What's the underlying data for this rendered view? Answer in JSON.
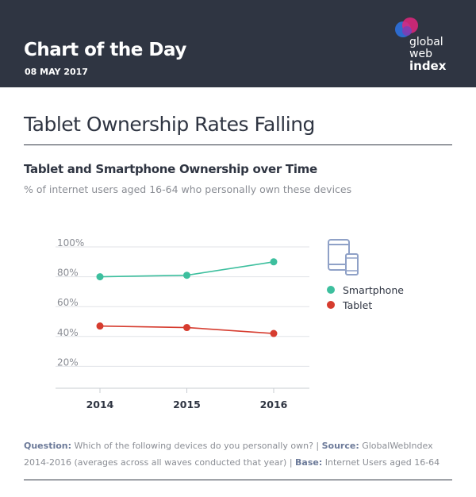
{
  "header": {
    "title": "Chart of the Day",
    "date": "08 MAY 2017",
    "logo_lines": [
      "global",
      "web",
      "index"
    ]
  },
  "page_title": "Tablet Ownership Rates Falling",
  "chart_data": {
    "type": "line",
    "title": "Tablet and Smartphone Ownership over Time",
    "subtitle": "% of internet users aged 16-64 who personally own these devices",
    "x": [
      "2014",
      "2015",
      "2016"
    ],
    "ylim": [
      0,
      100
    ],
    "y_ticks": [
      "100%",
      "80%",
      "60%",
      "40%",
      "20%"
    ],
    "y_tick_values": [
      100,
      80,
      60,
      40,
      20
    ],
    "grid": true,
    "legend_position": "right",
    "series": [
      {
        "name": "Smartphone",
        "values": [
          80,
          81,
          90
        ],
        "color": "#3dbf9e"
      },
      {
        "name": "Tablet",
        "values": [
          47,
          46,
          42
        ],
        "color": "#d63c2f"
      }
    ]
  },
  "legend_icon": "devices-icon",
  "footnote": {
    "question_label": "Question:",
    "question_text": " Which of the following devices do you personally own? | ",
    "source_label": "Source:",
    "source_text": " GlobalWebIndex 2014-2016 (averages across all waves conducted that year) | ",
    "base_label": "Base:",
    "base_text": " Internet Users aged 16-64"
  },
  "colors": {
    "header_bg": "#2f3542",
    "smartphone": "#3dbf9e",
    "tablet": "#d63c2f",
    "axis_text": "#8a8d94"
  }
}
